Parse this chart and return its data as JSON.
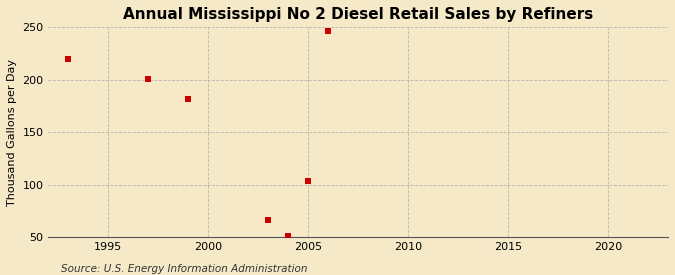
{
  "title": "Annual Mississippi No 2 Diesel Retail Sales by Refiners",
  "ylabel": "Thousand Gallons per Day",
  "source": "Source: U.S. Energy Information Administration",
  "x_data": [
    1993,
    1997,
    1999,
    2003,
    2004,
    2005,
    2006
  ],
  "y_data": [
    220,
    201,
    182,
    67,
    51,
    104,
    246
  ],
  "xlim": [
    1992,
    2023
  ],
  "ylim": [
    50,
    250
  ],
  "xticks": [
    1995,
    2000,
    2005,
    2010,
    2015,
    2020
  ],
  "yticks": [
    50,
    100,
    150,
    200,
    250
  ],
  "background_color": "#f5e9c8",
  "marker_color": "#cc0000",
  "marker_size": 5,
  "grid_color": "#aaaaaa",
  "title_fontsize": 11,
  "label_fontsize": 8,
  "tick_fontsize": 8,
  "source_fontsize": 7.5
}
